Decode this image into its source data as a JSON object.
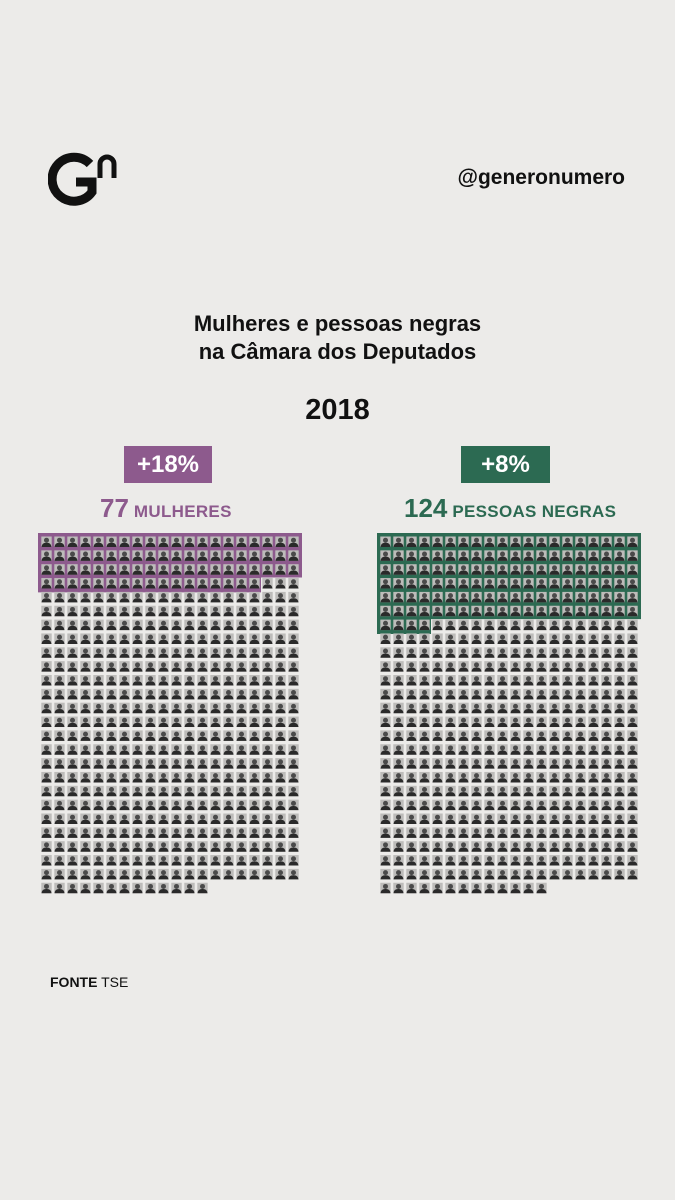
{
  "brand": {
    "logo_icon": "gn-logo-icon",
    "handle": "@generonumero"
  },
  "title": {
    "line1": "Mulheres e pessoas negras",
    "line2": "na Câmara dos Deputados"
  },
  "year": "2018",
  "source": {
    "label": "FONTE",
    "value": "TSE"
  },
  "colors": {
    "background": "#ecebe9",
    "women": "#8d5a8d",
    "black_people": "#2c6a52",
    "person_icon": "#2a2a2a"
  },
  "chart_data": [
    {
      "type": "waffle",
      "name": "MULHERES",
      "count": 77,
      "total": 513,
      "columns": 20,
      "change_label": "+18%",
      "highlight_color": "#8d5a8d",
      "headline_number": "77",
      "headline_label": "MULHERES"
    },
    {
      "type": "waffle",
      "name": "PESSOAS NEGRAS",
      "count": 124,
      "total": 513,
      "columns": 20,
      "change_label": "+8%",
      "highlight_color": "#2c6a52",
      "headline_number": "124",
      "headline_label": "PESSOAS NEGRAS"
    }
  ]
}
